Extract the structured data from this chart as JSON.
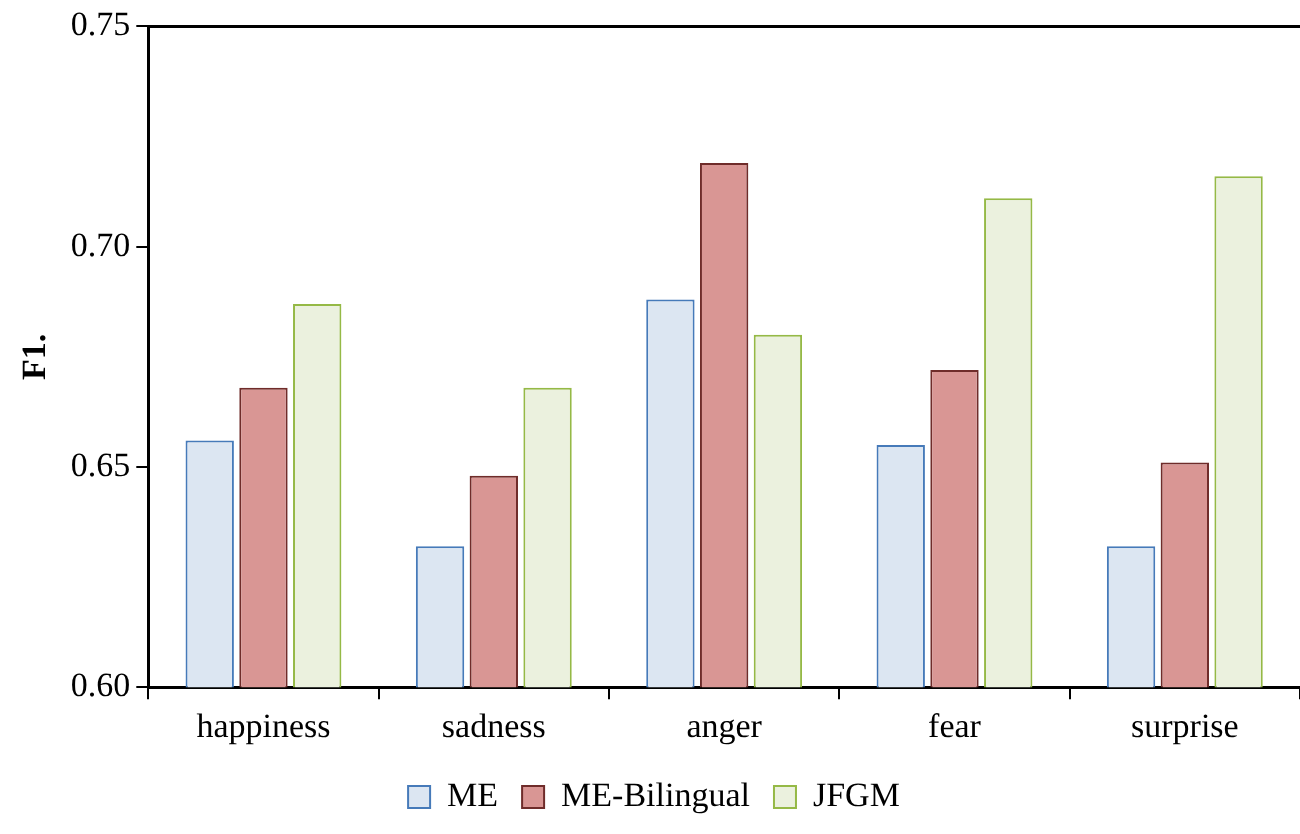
{
  "chart_data": {
    "type": "bar",
    "ylabel": "F1.",
    "categories": [
      "happiness",
      "sadness",
      "anger",
      "fear",
      "surprise"
    ],
    "series": [
      {
        "name": "ME",
        "color": "#dce6f2",
        "values": [
          0.656,
          0.632,
          0.688,
          0.655,
          0.632
        ]
      },
      {
        "name": "ME-Bilingual",
        "color": "#d99694",
        "values": [
          0.668,
          0.648,
          0.719,
          0.672,
          0.651
        ]
      },
      {
        "name": "JFGM",
        "color": "#ebf1de",
        "values": [
          0.687,
          0.668,
          0.68,
          0.711,
          0.716
        ]
      }
    ],
    "ylim": [
      0.6,
      0.75
    ],
    "yticks": [
      {
        "value": 0.6,
        "label": "0.60"
      },
      {
        "value": 0.65,
        "label": "0.65"
      },
      {
        "value": 0.7,
        "label": "0.70"
      },
      {
        "value": 0.75,
        "label": "0.75"
      }
    ],
    "grid": false,
    "legend": "bottom"
  }
}
